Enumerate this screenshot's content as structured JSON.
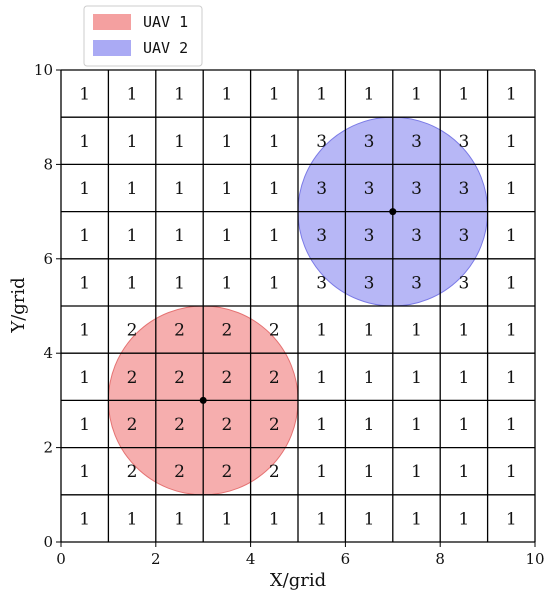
{
  "chart_data": {
    "type": "heatmap",
    "xlabel": "X/grid",
    "ylabel": "Y/grid",
    "xlim": [
      0,
      10
    ],
    "ylim": [
      0,
      10
    ],
    "xticks": [
      "0",
      "2",
      "4",
      "6",
      "8",
      "10"
    ],
    "yticks": [
      "0",
      "2",
      "4",
      "6",
      "8",
      "10"
    ],
    "grid": true,
    "legend_position": "top-left outside",
    "grid_values": [
      [
        "1",
        "1",
        "1",
        "1",
        "1",
        "1",
        "1",
        "1",
        "1",
        "1"
      ],
      [
        "1",
        "1",
        "1",
        "1",
        "1",
        "3",
        "3",
        "3",
        "3",
        "1"
      ],
      [
        "1",
        "1",
        "1",
        "1",
        "1",
        "3",
        "3",
        "3",
        "3",
        "1"
      ],
      [
        "1",
        "1",
        "1",
        "1",
        "1",
        "3",
        "3",
        "3",
        "3",
        "1"
      ],
      [
        "1",
        "1",
        "1",
        "1",
        "1",
        "3",
        "3",
        "3",
        "3",
        "1"
      ],
      [
        "1",
        "2",
        "2",
        "2",
        "2",
        "1",
        "1",
        "1",
        "1",
        "1"
      ],
      [
        "1",
        "2",
        "2",
        "2",
        "2",
        "1",
        "1",
        "1",
        "1",
        "1"
      ],
      [
        "1",
        "2",
        "2",
        "2",
        "2",
        "1",
        "1",
        "1",
        "1",
        "1"
      ],
      [
        "1",
        "2",
        "2",
        "2",
        "2",
        "1",
        "1",
        "1",
        "1",
        "1"
      ],
      [
        "1",
        "1",
        "1",
        "1",
        "1",
        "1",
        "1",
        "1",
        "1",
        "1"
      ]
    ],
    "circles": [
      {
        "name": "UAV 1",
        "center": [
          3,
          3
        ],
        "radius": 2,
        "color": "#f4a0a0",
        "edge": "#e57373"
      },
      {
        "name": "UAV 2",
        "center": [
          7,
          7
        ],
        "radius": 2,
        "color": "#aaaaf4",
        "edge": "#7b7be6"
      }
    ]
  },
  "legend": {
    "items": [
      {
        "label": "UAV 1",
        "color": "#f4a0a0"
      },
      {
        "label": "UAV 2",
        "color": "#aaaaf4"
      }
    ]
  }
}
